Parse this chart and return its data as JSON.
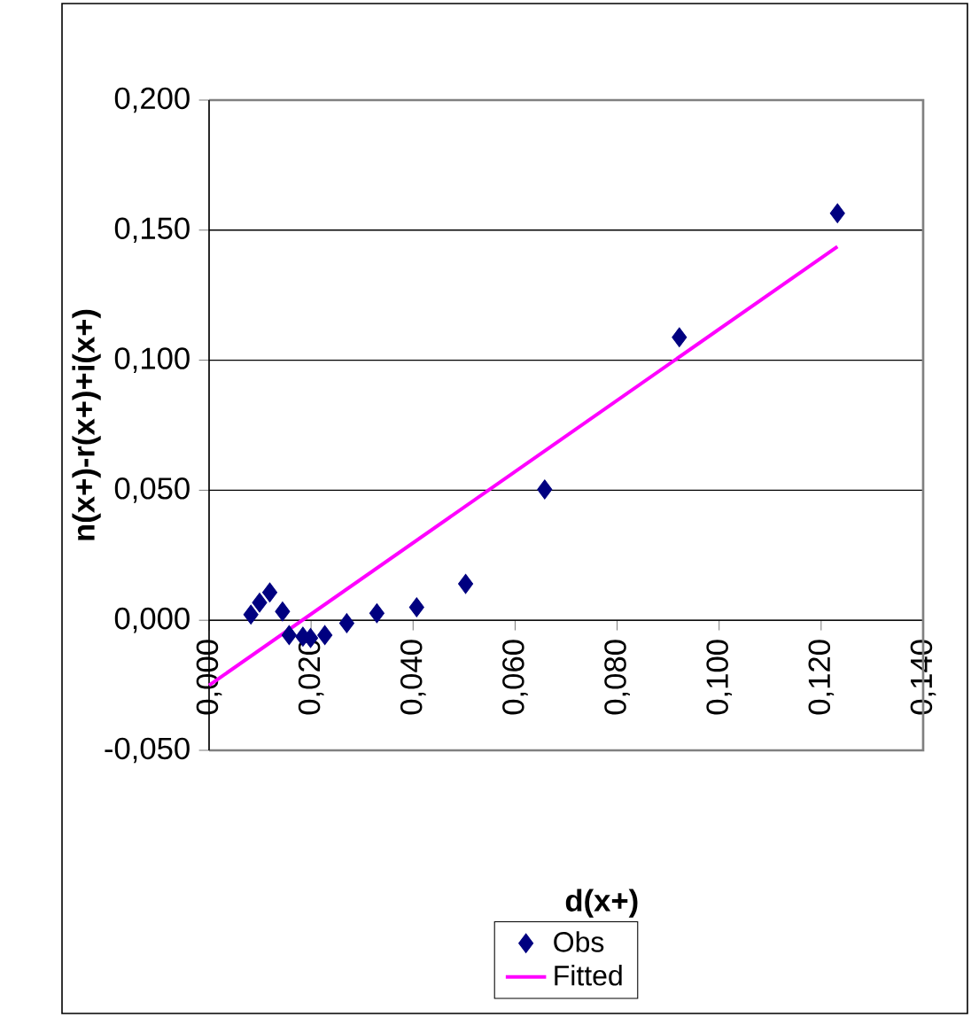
{
  "chart_data": {
    "type": "scatter",
    "xlabel": "d(x+)",
    "ylabel": "n(x+)-r(x+)+i(x+)",
    "xlim": [
      0,
      0.14
    ],
    "xticks": [
      {
        "value": 0,
        "label": "0,000"
      },
      {
        "value": 0.02,
        "label": "0,020"
      },
      {
        "value": 0.04,
        "label": "0,040"
      },
      {
        "value": 0.06,
        "label": "0,060"
      },
      {
        "value": 0.08,
        "label": "0,080"
      },
      {
        "value": 0.1,
        "label": "0,100"
      },
      {
        "value": 0.12,
        "label": "0,120"
      },
      {
        "value": 0.14,
        "label": "0,140"
      }
    ],
    "ylim": [
      -0.05,
      0.2
    ],
    "yticks": [
      {
        "value": -0.05,
        "label": "-0,050"
      },
      {
        "value": 0,
        "label": "0,000"
      },
      {
        "value": 0.05,
        "label": "0,050"
      },
      {
        "value": 0.1,
        "label": "0,100"
      },
      {
        "value": 0.15,
        "label": "0,150"
      },
      {
        "value": 0.2,
        "label": "0,200"
      }
    ],
    "grid": "y",
    "legend": "bottom",
    "series": [
      {
        "name": "Obs",
        "marker": "diamond",
        "color": "#000080",
        "x": [
          0.0082,
          0.0099,
          0.0119,
          0.0144,
          0.0157,
          0.0184,
          0.0199,
          0.0227,
          0.027,
          0.0329,
          0.0407,
          0.0503,
          0.0658,
          0.0922,
          0.1232
        ],
        "values": [
          0.0022,
          0.0068,
          0.0107,
          0.0034,
          -0.0057,
          -0.0063,
          -0.0068,
          -0.0057,
          -0.0011,
          0.0027,
          0.005,
          0.014,
          0.0503,
          0.1088,
          0.1565
        ]
      },
      {
        "name": "Fitted",
        "type": "line",
        "marker": "none",
        "color": "#ff00ff",
        "x": [
          0,
          0.1232
        ],
        "values": [
          -0.025,
          0.1437
        ]
      }
    ]
  }
}
